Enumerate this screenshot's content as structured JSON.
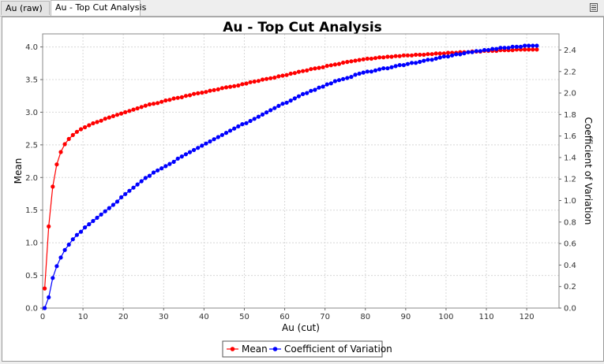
{
  "tabs": [
    {
      "label": "Au (raw)"
    },
    {
      "label": "Au - Top Cut Analysis"
    }
  ],
  "chart_data": {
    "type": "line",
    "title": "Au - Top Cut Analysis",
    "xlabel": "Au (cut)",
    "ylabel_left": "Mean",
    "ylabel_right": "Coefficient of Variation",
    "xlim": [
      0,
      128
    ],
    "ylim_left": [
      0,
      4.2
    ],
    "ylim_right": [
      0,
      2.55
    ],
    "xticks": [
      0,
      10,
      20,
      30,
      40,
      50,
      60,
      70,
      80,
      90,
      100,
      110,
      120
    ],
    "yticks_left": [
      0.0,
      0.5,
      1.0,
      1.5,
      2.0,
      2.5,
      3.0,
      3.5,
      4.0
    ],
    "yticks_right": [
      0.0,
      0.2,
      0.4,
      0.6,
      0.8,
      1.0,
      1.2,
      1.4,
      1.6,
      1.8,
      2.0,
      2.2,
      2.4
    ],
    "xtick_labels": [
      "0",
      "10",
      "20",
      "30",
      "40",
      "50",
      "60",
      "70",
      "80",
      "90",
      "100",
      "110",
      "120"
    ],
    "ytick_labels_left": [
      "0.0",
      "0.5",
      "1.0",
      "1.5",
      "2.0",
      "2.5",
      "3.0",
      "3.5",
      "4.0"
    ],
    "ytick_labels_right": [
      "0.0",
      "0.2",
      "0.4",
      "0.6",
      "0.8",
      "1.0",
      "1.2",
      "1.4",
      "1.6",
      "1.8",
      "2.0",
      "2.2",
      "2.4"
    ],
    "grid": true,
    "legend_position": "bottom",
    "series": [
      {
        "name": "Mean",
        "axis": "left",
        "color": "#ff0000",
        "x_start": 0.5,
        "x_step": 1,
        "values": [
          0.3,
          1.25,
          1.86,
          2.2,
          2.39,
          2.51,
          2.59,
          2.65,
          2.7,
          2.74,
          2.77,
          2.8,
          2.83,
          2.85,
          2.87,
          2.9,
          2.92,
          2.94,
          2.96,
          2.98,
          3.0,
          3.02,
          3.04,
          3.06,
          3.08,
          3.1,
          3.12,
          3.13,
          3.14,
          3.16,
          3.18,
          3.19,
          3.21,
          3.22,
          3.23,
          3.25,
          3.26,
          3.28,
          3.29,
          3.3,
          3.31,
          3.33,
          3.34,
          3.35,
          3.37,
          3.38,
          3.39,
          3.4,
          3.41,
          3.43,
          3.44,
          3.46,
          3.47,
          3.48,
          3.5,
          3.51,
          3.52,
          3.53,
          3.55,
          3.56,
          3.57,
          3.59,
          3.6,
          3.62,
          3.63,
          3.64,
          3.66,
          3.67,
          3.68,
          3.69,
          3.71,
          3.72,
          3.73,
          3.74,
          3.76,
          3.77,
          3.78,
          3.79,
          3.8,
          3.81,
          3.82,
          3.82,
          3.83,
          3.84,
          3.84,
          3.85,
          3.85,
          3.86,
          3.86,
          3.87,
          3.87,
          3.87,
          3.88,
          3.88,
          3.88,
          3.89,
          3.89,
          3.9,
          3.9,
          3.9,
          3.91,
          3.91,
          3.91,
          3.92,
          3.92,
          3.92,
          3.93,
          3.93,
          3.93,
          3.94,
          3.94,
          3.94,
          3.94,
          3.95,
          3.95,
          3.95,
          3.95,
          3.96,
          3.96,
          3.96,
          3.96,
          3.96,
          3.96
        ]
      },
      {
        "name": "Coefficient of Variation",
        "axis": "right",
        "color": "#0000ff",
        "x_start": 0.5,
        "x_step": 1,
        "values": [
          0.0,
          0.1,
          0.28,
          0.39,
          0.47,
          0.54,
          0.59,
          0.64,
          0.68,
          0.71,
          0.75,
          0.78,
          0.81,
          0.84,
          0.87,
          0.9,
          0.93,
          0.96,
          0.99,
          1.03,
          1.06,
          1.09,
          1.12,
          1.15,
          1.18,
          1.21,
          1.23,
          1.26,
          1.28,
          1.3,
          1.32,
          1.34,
          1.36,
          1.39,
          1.41,
          1.43,
          1.45,
          1.47,
          1.49,
          1.51,
          1.53,
          1.55,
          1.57,
          1.59,
          1.61,
          1.63,
          1.65,
          1.67,
          1.69,
          1.71,
          1.72,
          1.74,
          1.76,
          1.78,
          1.8,
          1.82,
          1.84,
          1.86,
          1.88,
          1.9,
          1.91,
          1.93,
          1.95,
          1.97,
          1.99,
          2.0,
          2.02,
          2.03,
          2.05,
          2.06,
          2.08,
          2.09,
          2.11,
          2.12,
          2.13,
          2.14,
          2.15,
          2.17,
          2.18,
          2.19,
          2.2,
          2.2,
          2.21,
          2.22,
          2.23,
          2.23,
          2.24,
          2.25,
          2.26,
          2.26,
          2.27,
          2.28,
          2.28,
          2.29,
          2.3,
          2.31,
          2.31,
          2.32,
          2.33,
          2.34,
          2.34,
          2.35,
          2.36,
          2.36,
          2.37,
          2.38,
          2.38,
          2.39,
          2.39,
          2.4,
          2.4,
          2.41,
          2.41,
          2.42,
          2.42,
          2.42,
          2.43,
          2.43,
          2.43,
          2.44,
          2.44,
          2.44,
          2.44
        ]
      }
    ]
  }
}
